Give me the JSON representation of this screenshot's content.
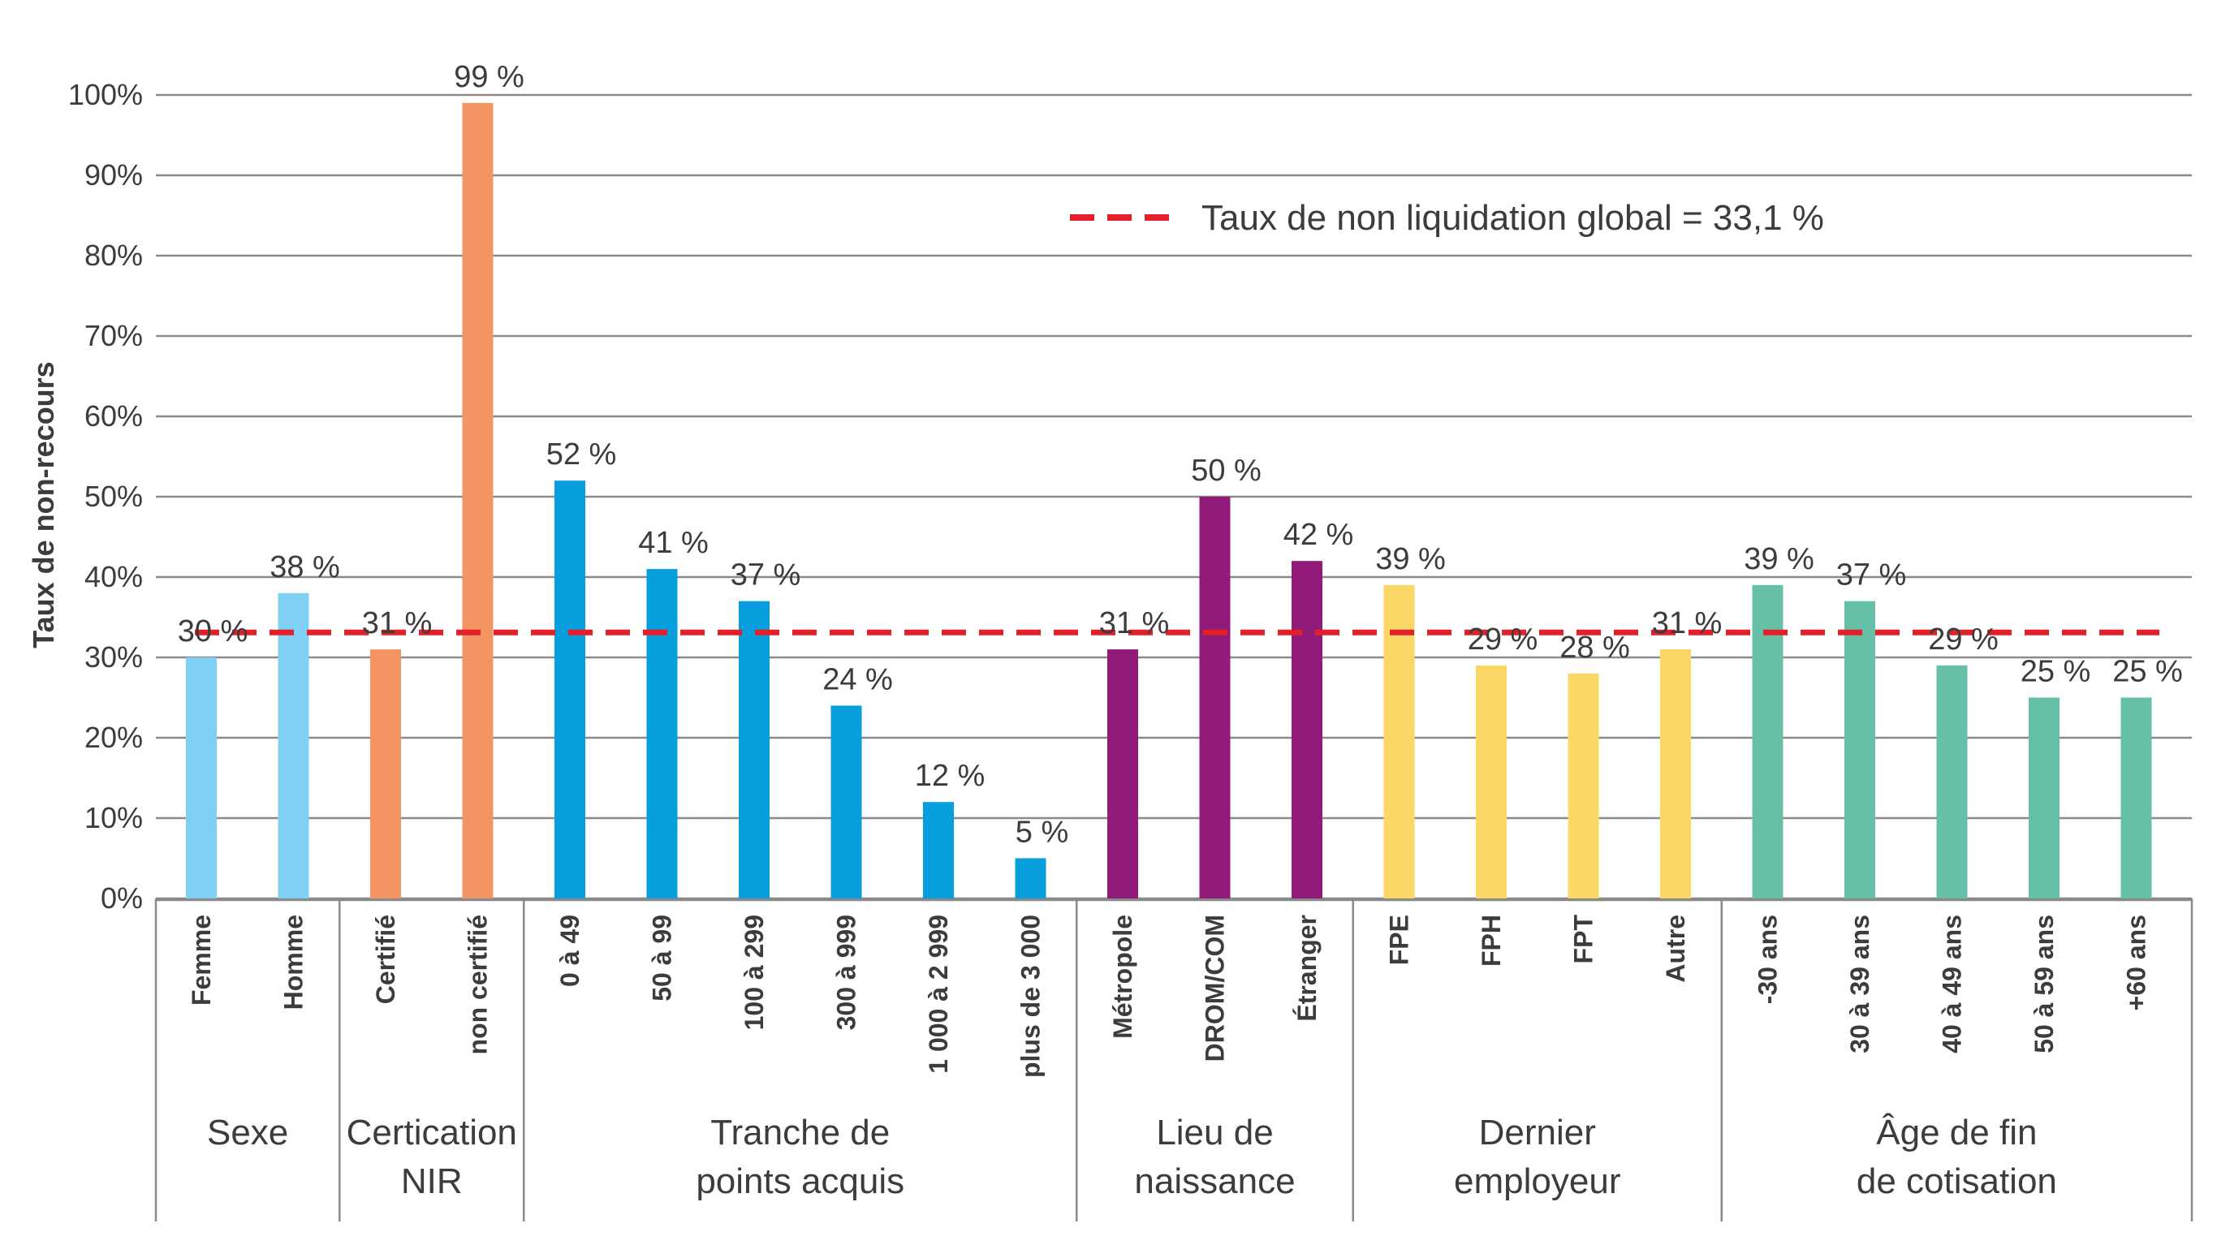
{
  "chart_data": {
    "type": "bar",
    "ylabel": "Taux de non-recours",
    "xlabel": "",
    "ylim": [
      0,
      100
    ],
    "y_ticks": [
      0,
      10,
      20,
      30,
      40,
      50,
      60,
      70,
      80,
      90,
      100
    ],
    "y_tick_labels": [
      "0%",
      "10%",
      "20%",
      "30%",
      "40%",
      "50%",
      "60%",
      "70%",
      "80%",
      "90%",
      "100%"
    ],
    "grid": true,
    "reference_line": {
      "value": 33.1,
      "label": "Taux de non liquidation global = 33,1 %",
      "color": "#e3202a",
      "style": "dashed"
    },
    "legend_position": "top-right",
    "groups": [
      {
        "label_lines": [
          "Sexe"
        ],
        "color": "#7fd0f2",
        "bars": [
          {
            "category": "Femme",
            "value": 30,
            "label": "30 %"
          },
          {
            "category": "Homme",
            "value": 38,
            "label": "38 %"
          }
        ]
      },
      {
        "label_lines": [
          "Certication",
          "NIR"
        ],
        "color": "#f39462",
        "bars": [
          {
            "category": "Certifié",
            "value": 31,
            "label": "31 %"
          },
          {
            "category": "non certifié",
            "value": 99,
            "label": "99 %"
          }
        ]
      },
      {
        "label_lines": [
          "Tranche de",
          "points acquis"
        ],
        "color": "#069edd",
        "bars": [
          {
            "category": "0 à 49",
            "value": 52,
            "label": "52 %"
          },
          {
            "category": "50 à 99",
            "value": 41,
            "label": "41 %"
          },
          {
            "category": "100 à 299",
            "value": 37,
            "label": "37 %"
          },
          {
            "category": "300 à 999",
            "value": 24,
            "label": "24 %"
          },
          {
            "category": "1 000 à 2 999",
            "value": 12,
            "label": "12 %"
          },
          {
            "category": "plus de 3 000",
            "value": 5,
            "label": "5 %"
          }
        ]
      },
      {
        "label_lines": [
          "Lieu de",
          "naissance"
        ],
        "color": "#921b79",
        "bars": [
          {
            "category": "Métropole",
            "value": 31,
            "label": "31 %"
          },
          {
            "category": "DROM/COM",
            "value": 50,
            "label": "50 %"
          },
          {
            "category": "Étranger",
            "value": 42,
            "label": "42 %"
          }
        ]
      },
      {
        "label_lines": [
          "Dernier",
          "employeur"
        ],
        "color": "#fbd865",
        "bars": [
          {
            "category": "FPE",
            "value": 39,
            "label": "39 %"
          },
          {
            "category": "FPH",
            "value": 29,
            "label": "29 %"
          },
          {
            "category": "FPT",
            "value": 28,
            "label": "28 %"
          },
          {
            "category": "Autre",
            "value": 31,
            "label": "31 %"
          }
        ]
      },
      {
        "label_lines": [
          "Âge de fin",
          "de cotisation"
        ],
        "color": "#66c0a8",
        "bars": [
          {
            "category": "-30 ans",
            "value": 39,
            "label": "39 %"
          },
          {
            "category": "30 à 39 ans",
            "value": 37,
            "label": "37 %"
          },
          {
            "category": "40 à 49 ans",
            "value": 29,
            "label": "29 %"
          },
          {
            "category": "50 à 59 ans",
            "value": 25,
            "label": "25 %"
          },
          {
            "category": "+60  ans",
            "value": 25,
            "label": "25 %"
          }
        ]
      }
    ]
  }
}
